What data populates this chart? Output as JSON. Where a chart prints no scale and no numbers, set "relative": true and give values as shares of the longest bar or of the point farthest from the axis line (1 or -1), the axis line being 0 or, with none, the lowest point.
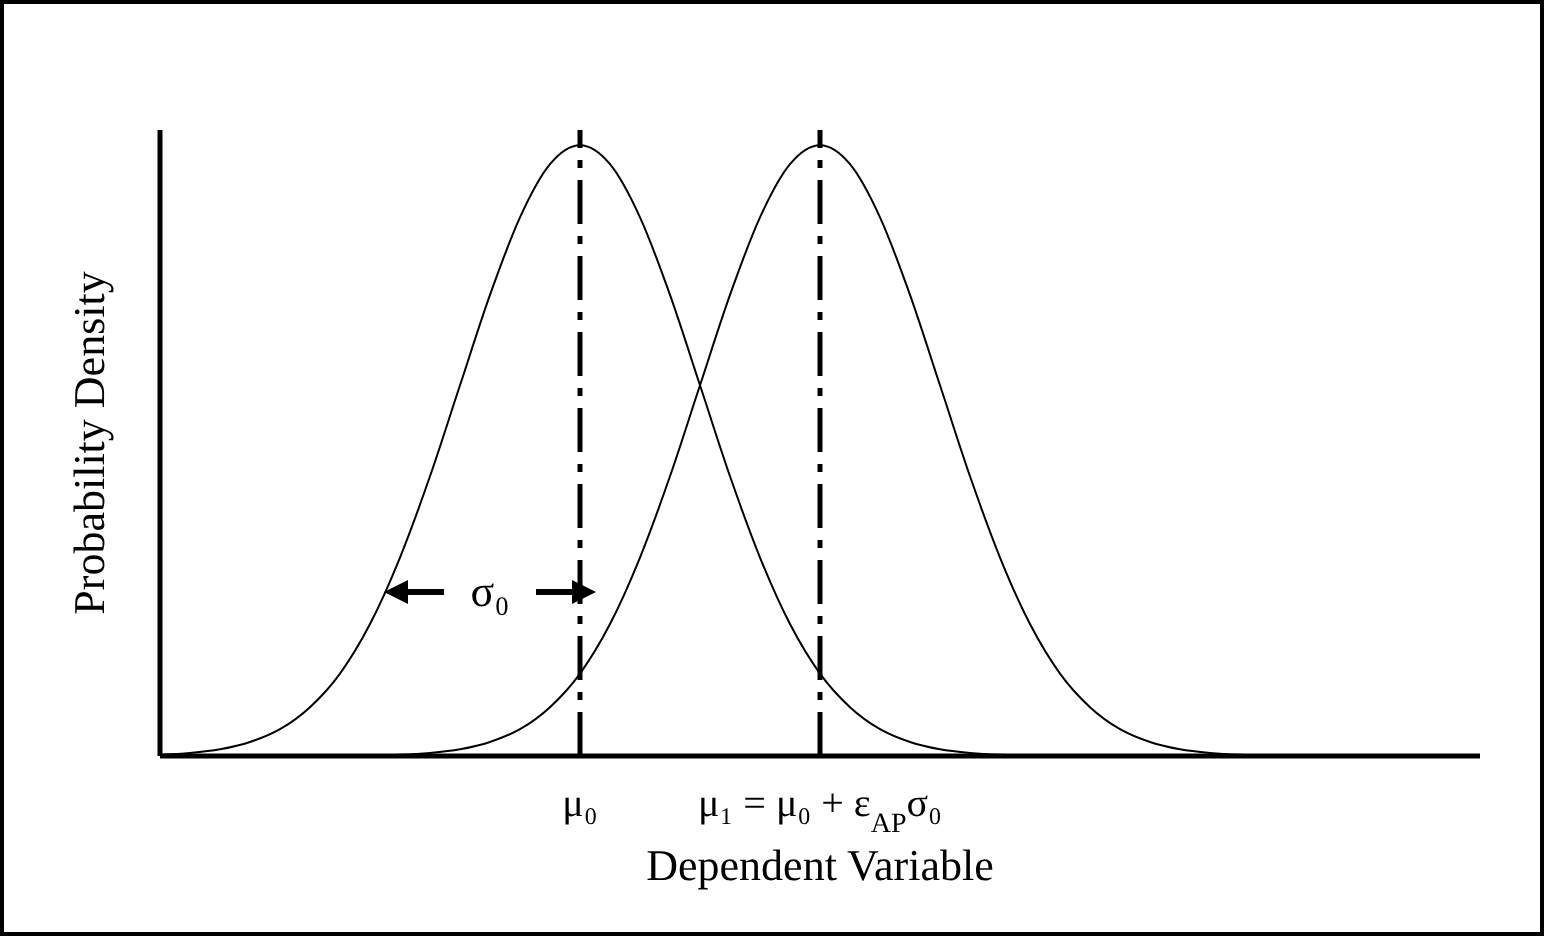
{
  "chart_data": {
    "type": "line",
    "relative": true,
    "xlabel": "Dependent Variable",
    "ylabel": "Probability Density",
    "categories": [
      null,
      null,
      null,
      null,
      null,
      null,
      null,
      null,
      null,
      null,
      null,
      null,
      null,
      null,
      "μ₀",
      null,
      null,
      null,
      null,
      null,
      null,
      null,
      "μ₁ = μ₀ + ε$_{AP}$σ₀",
      null,
      null,
      null,
      null,
      null,
      null,
      null,
      null,
      null,
      null,
      null,
      null,
      null,
      null,
      null,
      null,
      null,
      null,
      null,
      null,
      null,
      null
    ],
    "series": [
      {
        "color": "#000000",
        "values": [
          0.002,
          0.005,
          0.011,
          0.023,
          0.044,
          0.08,
          0.135,
          0.216,
          0.325,
          0.458,
          0.607,
          0.755,
          0.882,
          0.969,
          1,
          0.969,
          0.882,
          0.755,
          0.607,
          0.458,
          0.325,
          0.216,
          0.135,
          0.08,
          0.044,
          0.023,
          0.011,
          0.005,
          0.002,
          0.001,
          0,
          0,
          0,
          0,
          0,
          0,
          0,
          null,
          null,
          null,
          null,
          null,
          null,
          null,
          null
        ]
      },
      {
        "color": "#000000",
        "values": [
          null,
          null,
          null,
          null,
          null,
          null,
          0,
          0.001,
          0.002,
          0.005,
          0.011,
          0.023,
          0.044,
          0.08,
          0.135,
          0.216,
          0.325,
          0.458,
          0.607,
          0.755,
          0.882,
          0.969,
          1,
          0.969,
          0.882,
          0.755,
          0.607,
          0.458,
          0.325,
          0.216,
          0.135,
          0.08,
          0.044,
          0.023,
          0.011,
          0.005,
          0.002,
          0.001,
          0,
          0,
          0,
          0,
          0,
          0,
          0
        ]
      }
    ],
    "ref_lines": [
      {
        "axis": "x",
        "value": "μ₀",
        "color": "#000000",
        "line_style": "dashed"
      },
      {
        "axis": "x",
        "value": "μ₁ = μ₀ + ε$_{AP}$σ₀",
        "color": "#000000",
        "line_style": "dashed"
      }
    ],
    "annotations": [
      "σ₀"
    ]
  }
}
